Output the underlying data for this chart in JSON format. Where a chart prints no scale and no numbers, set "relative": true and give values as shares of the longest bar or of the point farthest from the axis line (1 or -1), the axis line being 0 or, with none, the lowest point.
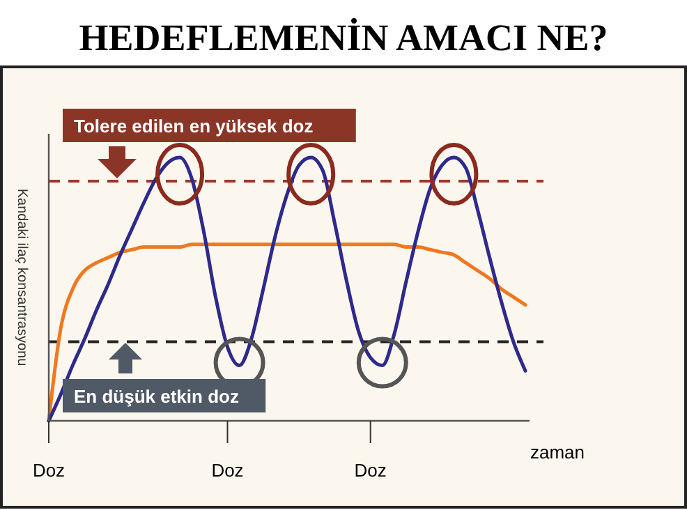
{
  "chart_data": {
    "type": "line",
    "title": "HEDEFLEMENİN AMACI NE?",
    "xlabel": "zaman",
    "ylabel": "Kandaki ilaç konsantrasyonu",
    "relative": true,
    "categories": [
      "Doz",
      null,
      null,
      null,
      null,
      null,
      null,
      null,
      null,
      null,
      null,
      null,
      null,
      null,
      null,
      "Doz",
      null,
      null,
      null,
      null,
      null,
      null,
      null,
      null,
      null,
      null,
      null,
      "Doz",
      null,
      null,
      null,
      null,
      null,
      null,
      null,
      null,
      null,
      null,
      null,
      null,
      null
    ],
    "series": [
      {
        "color": "#f07820",
        "values": [
          0,
          0.35,
          0.5,
          0.57,
          0.6,
          0.62,
          0.64,
          0.65,
          0.66,
          0.66,
          0.66,
          0.66,
          0.67,
          0.67,
          0.67,
          0.67,
          0.67,
          0.67,
          0.67,
          0.67,
          0.67,
          0.67,
          0.67,
          0.67,
          0.67,
          0.67,
          0.67,
          0.67,
          0.67,
          0.67,
          0.66,
          0.66,
          0.65,
          0.64,
          0.63,
          0.6,
          0.57,
          0.54,
          0.5,
          0.47,
          0.44
        ]
      },
      {
        "color": "#2e2a8c",
        "values": [
          0,
          0.1,
          0.21,
          0.31,
          0.42,
          0.52,
          0.63,
          0.73,
          0.83,
          0.92,
          0.98,
          1.0,
          0.92,
          0.72,
          0.47,
          0.28,
          0.21,
          0.31,
          0.5,
          0.7,
          0.86,
          0.97,
          1.0,
          0.95,
          0.75,
          0.53,
          0.34,
          0.24,
          0.21,
          0.33,
          0.53,
          0.72,
          0.88,
          0.97,
          1.0,
          0.96,
          0.8,
          0.62,
          0.45,
          0.3,
          0.19
        ]
      }
    ],
    "ref_lines": [
      {
        "axis": "y",
        "value": 0.91,
        "label": "Tolere edilen en yüksek doz",
        "color": "#9b3a2a",
        "line_style": "dashed"
      },
      {
        "axis": "y",
        "value": 0.3,
        "label": "En düşük etkin doz",
        "color": "#222222",
        "line_style": "dashed"
      }
    ]
  }
}
